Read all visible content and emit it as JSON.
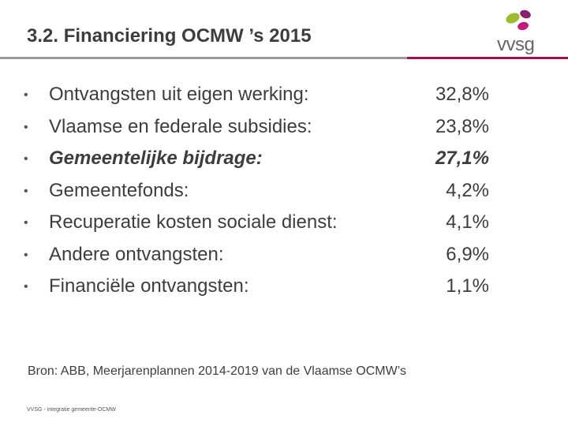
{
  "title": "3.2. Financiering OCMW ’s 2015",
  "logo": {
    "text": "vvsg"
  },
  "colors": {
    "rule_grey": "#9a9a9a",
    "rule_accent": "#a0105c",
    "logo_green": "#9bbb2a",
    "logo_purple": "#8b1f6e",
    "logo_magenta": "#c4197a"
  },
  "items": [
    {
      "label": "Ontvangsten uit eigen werking:",
      "value": "32,8%"
    },
    {
      "label": "Vlaamse en federale subsidies:",
      "value": "23,8%"
    },
    {
      "label": "Gemeentelijke bijdrage:",
      "value": "27,1%"
    },
    {
      "label": "Gemeentefonds:",
      "value": "4,2%"
    },
    {
      "label": "Recuperatie kosten sociale dienst:",
      "value": "4,1%"
    },
    {
      "label": "Andere ontvangsten:",
      "value": "6,9%"
    },
    {
      "label": "Financiële ontvangsten:",
      "value": "1,1%"
    }
  ],
  "source": "Bron: ABB, Meerjarenplannen 2014-2019 van de Vlaamse OCMW’s",
  "footer": "VVSG - integratie gemeente-OCMW"
}
